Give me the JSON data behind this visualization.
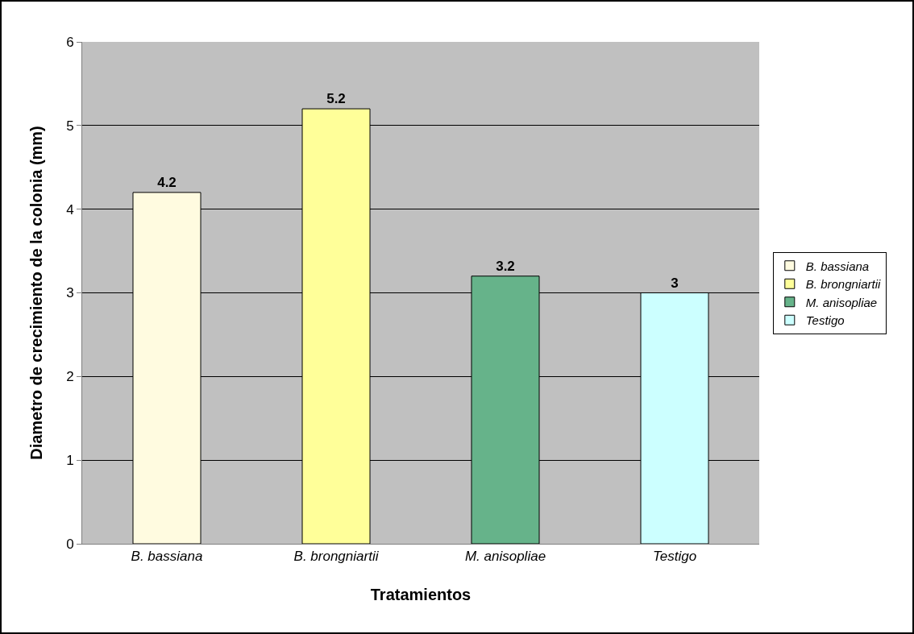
{
  "chart_data": {
    "type": "bar",
    "xlabel": "Tratamientos",
    "ylabel": "Diametro de crecimiento de la colonia (mm)",
    "categories": [
      "B. bassiana",
      "B. brongniartii",
      "M. anisopliae",
      "Testigo"
    ],
    "series": [
      {
        "name": "B. bassiana",
        "color": "#fffbe0",
        "values": [
          4.2,
          null,
          null,
          null
        ]
      },
      {
        "name": "B. brongniartii",
        "color": "#ffff99",
        "values": [
          null,
          5.2,
          null,
          null
        ]
      },
      {
        "name": "M. anisopliae",
        "color": "#66b38a",
        "values": [
          null,
          null,
          3.2,
          null
        ]
      },
      {
        "name": "Testigo",
        "color": "#ccffff",
        "values": [
          null,
          null,
          null,
          3
        ]
      }
    ],
    "ylim": [
      0,
      6
    ],
    "yticks": [
      0,
      1,
      2,
      3,
      4,
      5,
      6
    ],
    "grid": "y",
    "legend": "right",
    "data_labels": true
  }
}
